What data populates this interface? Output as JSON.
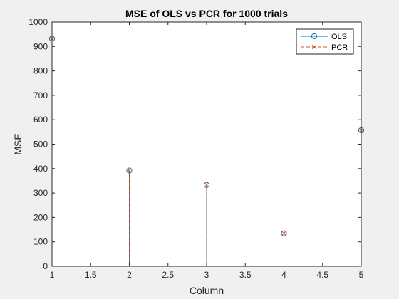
{
  "chart_data": {
    "type": "stem",
    "title": "MSE of OLS vs PCR for 1000 trials",
    "xlabel": "Column",
    "ylabel": "MSE",
    "xlim": [
      1,
      5
    ],
    "ylim": [
      0,
      1000
    ],
    "xticks": [
      "1",
      "1.5",
      "2",
      "2.5",
      "3",
      "3.5",
      "4",
      "4.5",
      "5"
    ],
    "yticks": [
      "0",
      "100",
      "200",
      "300",
      "400",
      "500",
      "600",
      "700",
      "800",
      "900",
      "1000"
    ],
    "x": [
      1,
      2,
      3,
      4,
      5
    ],
    "series": [
      {
        "name": "OLS",
        "values": [
          932,
          392,
          333,
          135,
          557
        ],
        "color": "#0072BD",
        "marker": "circle",
        "line": "solid"
      },
      {
        "name": "PCR",
        "values": [
          932,
          392,
          333,
          135,
          557
        ],
        "color": "#D95319",
        "marker": "x",
        "line": "dashed"
      }
    ],
    "legend": "top-right",
    "grid": false
  },
  "colors": {
    "figure_bg": "#f0f0f0",
    "axes_bg": "#ffffff",
    "axis": "#262626"
  }
}
